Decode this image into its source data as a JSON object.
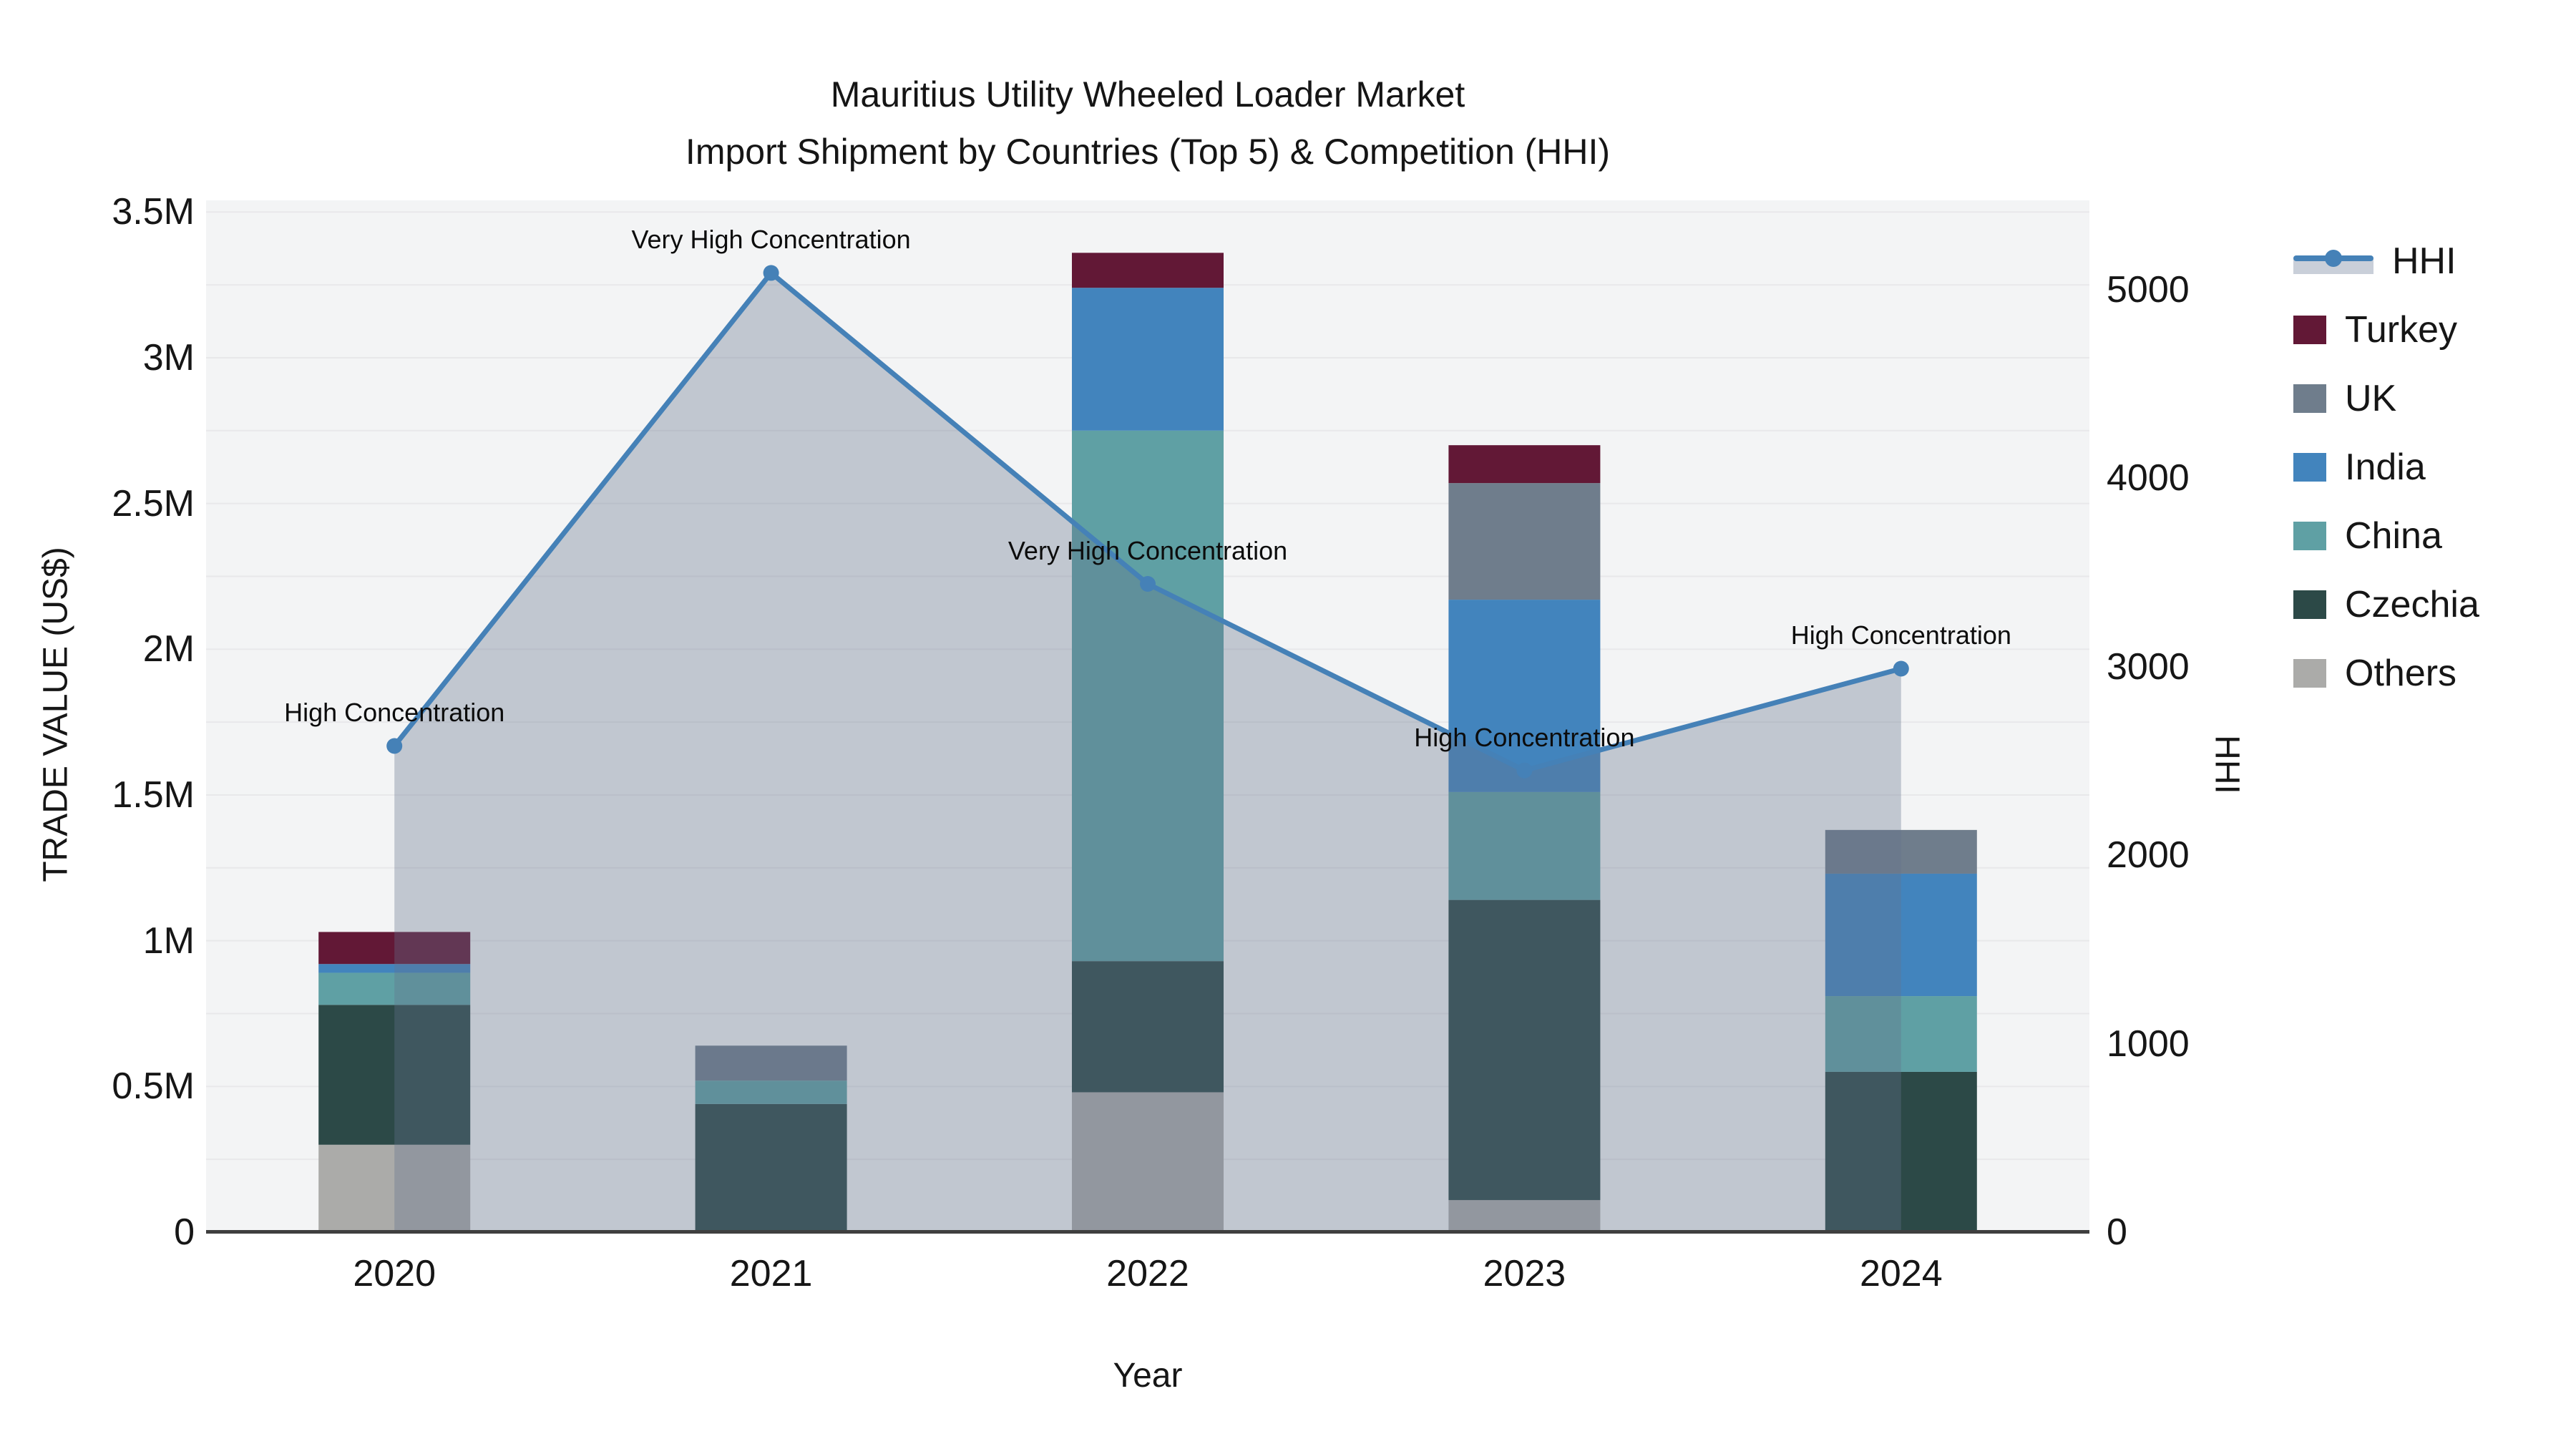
{
  "title": {
    "line1": "Mauritius Utility Wheeled Loader Market",
    "line2": "Import Shipment by Countries (Top 5) & Competition (HHI)"
  },
  "axes": {
    "x": {
      "title": "Year",
      "tick_labels": [
        "2020",
        "2021",
        "2022",
        "2023",
        "2024"
      ]
    },
    "y_left": {
      "title": "TRADE VALUE (US$)",
      "tick_labels": [
        "0",
        "0.5M",
        "1M",
        "1.5M",
        "2M",
        "2.5M",
        "3M",
        "3.5M"
      ],
      "tick_values_musd": [
        0,
        0.5,
        1,
        1.5,
        2,
        2.5,
        3,
        3.5
      ],
      "range_musd": [
        0,
        3.54
      ]
    },
    "y_right": {
      "title": "HHI",
      "tick_labels": [
        "0",
        "1000",
        "2000",
        "3000",
        "4000",
        "5000"
      ],
      "tick_values": [
        0,
        1000,
        2000,
        3000,
        4000,
        5000
      ],
      "range": [
        0,
        5475
      ]
    }
  },
  "legend": {
    "items": [
      {
        "label": "HHI",
        "type": "line",
        "color": "#4581b7"
      },
      {
        "label": "Turkey",
        "type": "swatch",
        "color": "#621836"
      },
      {
        "label": "UK",
        "type": "swatch",
        "color": "#6f7d8c"
      },
      {
        "label": "India",
        "type": "swatch",
        "color": "#4284bd"
      },
      {
        "label": "China",
        "type": "swatch",
        "color": "#5fa0a4"
      },
      {
        "label": "Czechia",
        "type": "swatch",
        "color": "#2c4947"
      },
      {
        "label": "Others",
        "type": "swatch",
        "color": "#ababa9"
      }
    ]
  },
  "chart_data": {
    "type": "combo_stacked_bar_line",
    "categories": [
      "2020",
      "2021",
      "2022",
      "2023",
      "2024"
    ],
    "bar_value_unit": "million US$",
    "stack_order_bottom_to_top": [
      "Others",
      "Czechia",
      "China",
      "India",
      "UK",
      "Turkey"
    ],
    "series": [
      {
        "name": "Turkey",
        "values_musd": [
          0.11,
          0,
          0.12,
          0.13,
          0
        ],
        "color": "#621836"
      },
      {
        "name": "UK",
        "values_musd": [
          0,
          0.12,
          0,
          0.4,
          0.15
        ],
        "color": "#6f7d8c"
      },
      {
        "name": "India",
        "values_musd": [
          0.03,
          0,
          0.49,
          0.66,
          0.42
        ],
        "color": "#4284bd"
      },
      {
        "name": "China",
        "values_musd": [
          0.11,
          0.08,
          1.82,
          0.37,
          0.26
        ],
        "color": "#5fa0a4"
      },
      {
        "name": "Czechia",
        "values_musd": [
          0.48,
          0.44,
          0.45,
          1.03,
          0.55
        ],
        "color": "#2c4947"
      },
      {
        "name": "Others",
        "values_musd": [
          0.3,
          0,
          0.48,
          0.11,
          0
        ],
        "color": "#ababa9"
      }
    ],
    "bar_totals_musd": [
      1.03,
      0.64,
      3.36,
      2.7,
      1.38
    ],
    "line_series": {
      "name": "HHI",
      "values": [
        2580,
        5090,
        3440,
        2450,
        2990
      ],
      "color": "#4581b7",
      "area_fill": "rgba(100,116,140,0.35)",
      "annotations": [
        "High Concentration",
        "Very High Concentration",
        "Very High Concentration",
        "High Concentration",
        "High Concentration"
      ]
    },
    "legend_position": "right",
    "grid": "horizontal"
  },
  "colors": {
    "page_bg": "#ffffff",
    "plot_bg": "#f3f4f5",
    "grid": "#e8e8ea",
    "axis_line": "#3f3f3f",
    "text": "#111111"
  }
}
